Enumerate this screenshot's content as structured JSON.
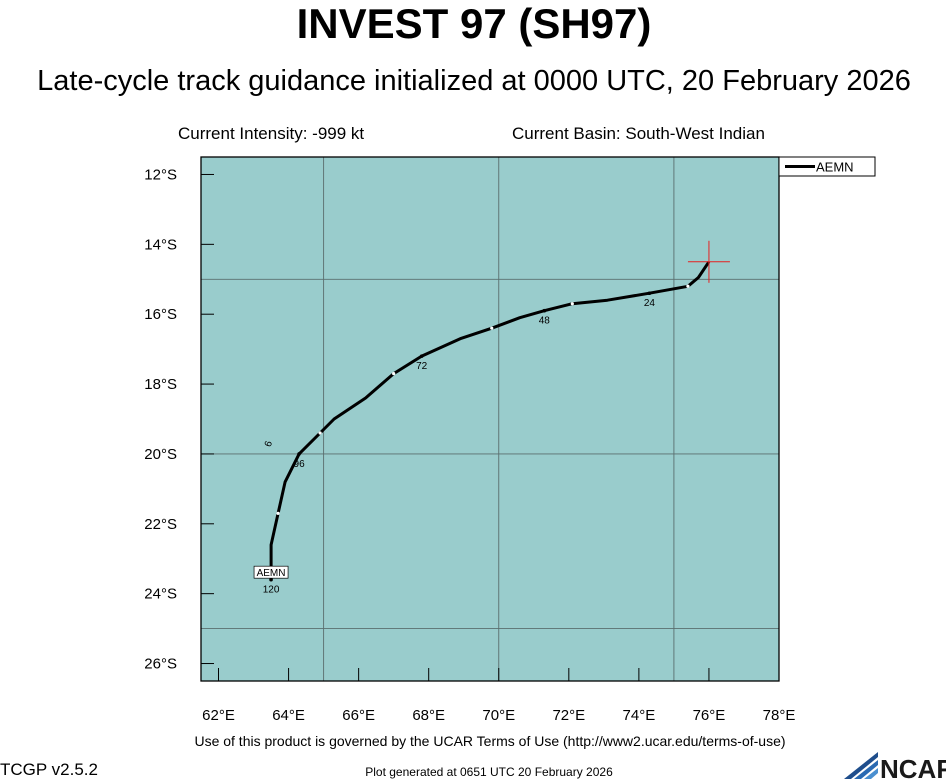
{
  "header": {
    "title": "INVEST 97 (SH97)",
    "subtitle": "Late-cycle track guidance initialized at 0000 UTC, 20 February 2026",
    "intensity": "Current Intensity: -999 kt",
    "basin": "Current Basin: South-West Indian"
  },
  "footer": {
    "terms": "Use of this product is governed by the UCAR Terms of Use (http://www2.ucar.edu/terms-of-use)",
    "version": "TCGP v2.5.2",
    "generated": "Plot generated at 0651 UTC   20 February 2026",
    "logo_text": "NCAR"
  },
  "colors": {
    "ocean": "#99cccc",
    "track": "#000000",
    "current_position_marker": "#e62020",
    "grid": "#5a6e6e"
  },
  "chart_data": {
    "type": "line",
    "title": "INVEST 97 (SH97)",
    "xlabel": "",
    "ylabel": "",
    "xlim": [
      61.5,
      78
    ],
    "ylim": [
      -26.5,
      -11.5
    ],
    "x_ticks": [
      62,
      64,
      66,
      68,
      70,
      72,
      74,
      76,
      78
    ],
    "x_tick_labels": [
      "62°E",
      "64°E",
      "66°E",
      "68°E",
      "70°E",
      "72°E",
      "74°E",
      "76°E",
      "78°E"
    ],
    "y_ticks": [
      -12,
      -14,
      -16,
      -18,
      -20,
      -22,
      -24,
      -26
    ],
    "y_tick_labels": [
      "12°S",
      "14°S",
      "16°S",
      "18°S",
      "20°S",
      "22°S",
      "24°S",
      "26°S"
    ],
    "grid_lon": [
      65,
      70,
      75
    ],
    "grid_lat": [
      -15,
      -20,
      -25
    ],
    "grid": true,
    "legend": "top-right",
    "current_position": {
      "lon": 76.0,
      "lat": -14.5
    },
    "series": [
      {
        "name": "AEMN",
        "points": [
          {
            "lon": 76.0,
            "lat": -14.5
          },
          {
            "lon": 75.7,
            "lat": -14.95
          },
          {
            "lon": 75.4,
            "lat": -15.2
          },
          {
            "lon": 74.3,
            "lat": -15.4
          },
          {
            "lon": 73.1,
            "lat": -15.6
          },
          {
            "lon": 72.1,
            "lat": -15.7
          },
          {
            "lon": 71.3,
            "lat": -15.9
          },
          {
            "lon": 70.6,
            "lat": -16.1
          },
          {
            "lon": 69.8,
            "lat": -16.4
          },
          {
            "lon": 68.9,
            "lat": -16.7
          },
          {
            "lon": 67.8,
            "lat": -17.2
          },
          {
            "lon": 67.0,
            "lat": -17.7
          },
          {
            "lon": 66.2,
            "lat": -18.4
          },
          {
            "lon": 65.3,
            "lat": -19.0
          },
          {
            "lon": 64.9,
            "lat": -19.4
          },
          {
            "lon": 64.3,
            "lat": -20.0
          },
          {
            "lon": 63.9,
            "lat": -20.8
          },
          {
            "lon": 63.7,
            "lat": -21.7
          },
          {
            "lon": 63.5,
            "lat": -22.6
          },
          {
            "lon": 63.5,
            "lat": -23.2
          },
          {
            "lon": 63.5,
            "lat": -23.6
          }
        ],
        "hour_marks": [
          {
            "hour": "24",
            "lon": 74.3,
            "lat": -15.4
          },
          {
            "hour": "48",
            "lon": 71.3,
            "lat": -15.9
          },
          {
            "hour": "72",
            "lon": 67.8,
            "lat": -17.2
          },
          {
            "hour": "96",
            "lon": 64.3,
            "lat": -20.0
          },
          {
            "hour": "120",
            "lon": 63.5,
            "lat": -23.6
          }
        ],
        "end_label": "AEMN"
      }
    ],
    "annotations": [
      {
        "text": "6",
        "lon": 63.4,
        "lat": -19.7
      }
    ]
  }
}
